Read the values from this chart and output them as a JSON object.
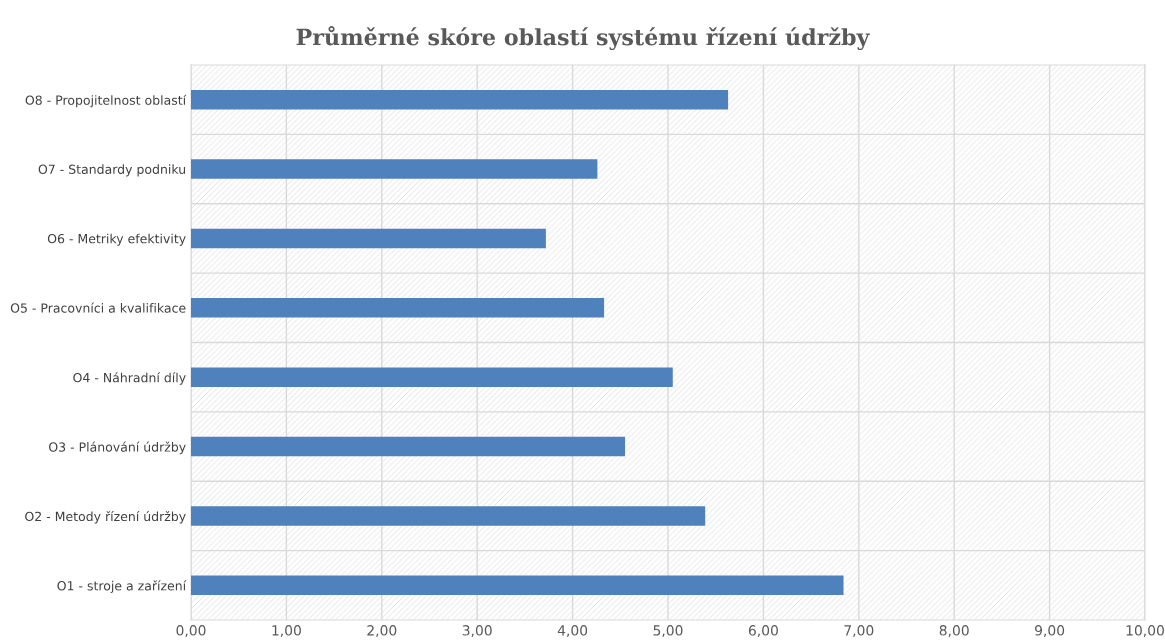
{
  "chart_data": {
    "type": "bar",
    "orientation": "horizontal",
    "title": "Průměrné skóre oblastí systému řízení údržby",
    "categories": [
      "O8 - Propojitelnost oblastí",
      "O7 - Standardy podniku",
      "O6 - Metriky efektivity",
      "O5 - Pracovníci a kvalifikace",
      "O4 - Náhradní díly",
      "O3 - Plánování údržby",
      "O2 - Metody řízení údržby",
      "O1 - stroje a zařízení"
    ],
    "values": [
      5.63,
      4.26,
      3.72,
      4.33,
      5.05,
      4.55,
      5.39,
      6.84
    ],
    "color": "#4f81bd",
    "xlim": [
      0,
      10
    ],
    "xticks": [
      {
        "value": 0,
        "label": "0,00"
      },
      {
        "value": 1,
        "label": "1,00"
      },
      {
        "value": 2,
        "label": "2,00"
      },
      {
        "value": 3,
        "label": "3,00"
      },
      {
        "value": 4,
        "label": "4,00"
      },
      {
        "value": 5,
        "label": "5,00"
      },
      {
        "value": 6,
        "label": "6,00"
      },
      {
        "value": 7,
        "label": "7,00"
      },
      {
        "value": 8,
        "label": "8,00"
      },
      {
        "value": 9,
        "label": "9,00"
      },
      {
        "value": 10,
        "label": "10,00"
      }
    ],
    "grid": true
  }
}
